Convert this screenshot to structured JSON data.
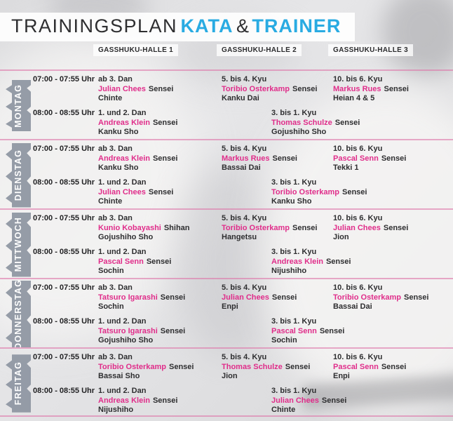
{
  "header": {
    "title_plain": "TRAININGSPLAN",
    "title_kata": "KATA",
    "title_amp": "&",
    "title_trainer": "TRAINER"
  },
  "columns": [
    "GASSHUKU-HALLE 1",
    "GASSHUKU-HALLE 2",
    "GASSHUKU-HALLE 3"
  ],
  "colors": {
    "accent_cyan": "#29abe2",
    "accent_magenta": "#e02d8a",
    "ribbon_gray": "#8e96a2",
    "text_dark": "#2e2e30",
    "separator_pink": "rgba(221,116,168,0.6)"
  },
  "days": [
    {
      "label": "MONTAG",
      "slots": [
        {
          "time": "07:00 - 07:55 Uhr",
          "entries": [
            {
              "hall": 1,
              "indent": false,
              "level": "ab 3. Dan",
              "trainer": "Julian Chees",
              "trainer_title": "Sensei",
              "kata": "Chinte"
            },
            {
              "hall": 2,
              "indent": false,
              "level": "5. bis 4. Kyu",
              "trainer": "Toribio Osterkamp",
              "trainer_title": "Sensei",
              "kata": "Kanku Dai"
            },
            {
              "hall": 3,
              "indent": false,
              "level": "10. bis 6. Kyu",
              "trainer": "Markus Rues",
              "trainer_title": "Sensei",
              "kata": "Heian 4 & 5"
            }
          ]
        },
        {
          "time": "08:00 - 08:55 Uhr",
          "entries": [
            {
              "hall": 1,
              "indent": false,
              "level": "1. und 2. Dan",
              "trainer": "Andreas Klein",
              "trainer_title": "Sensei",
              "kata": "Kanku Sho"
            },
            {
              "hall": 2,
              "indent": true,
              "level": "3. bis 1. Kyu",
              "trainer": "Thomas Schulze",
              "trainer_title": "Sensei",
              "kata": "Gojushiho Sho"
            }
          ]
        }
      ]
    },
    {
      "label": "DIENSTAG",
      "slots": [
        {
          "time": "07:00 - 07:55 Uhr",
          "entries": [
            {
              "hall": 1,
              "indent": false,
              "level": "ab 3. Dan",
              "trainer": "Andreas Klein",
              "trainer_title": "Sensei",
              "kata": "Kanku Sho"
            },
            {
              "hall": 2,
              "indent": false,
              "level": "5. bis 4. Kyu",
              "trainer": "Markus Rues",
              "trainer_title": "Sensei",
              "kata": "Bassai Dai"
            },
            {
              "hall": 3,
              "indent": false,
              "level": "10. bis 6. Kyu",
              "trainer": "Pascal Senn",
              "trainer_title": "Sensei",
              "kata": "Tekki 1"
            }
          ]
        },
        {
          "time": "08:00 - 08:55 Uhr",
          "entries": [
            {
              "hall": 1,
              "indent": false,
              "level": "1. und 2. Dan",
              "trainer": "Julian Chees",
              "trainer_title": "Sensei",
              "kata": "Chinte"
            },
            {
              "hall": 2,
              "indent": true,
              "level": "3. bis 1. Kyu",
              "trainer": "Toribio Osterkamp",
              "trainer_title": "Sensei",
              "kata": "Kanku Sho"
            }
          ]
        }
      ]
    },
    {
      "label": "MITTWOCH",
      "slots": [
        {
          "time": "07:00 - 07:55 Uhr",
          "entries": [
            {
              "hall": 1,
              "indent": false,
              "level": "ab 3. Dan",
              "trainer": "Kunio Kobayashi",
              "trainer_title": "Shihan",
              "kata": "Gojushiho Sho"
            },
            {
              "hall": 2,
              "indent": false,
              "level": "5. bis 4. Kyu",
              "trainer": "Toribio Osterkamp",
              "trainer_title": "Sensei",
              "kata": "Hangetsu"
            },
            {
              "hall": 3,
              "indent": false,
              "level": "10. bis 6. Kyu",
              "trainer": "Julian Chees",
              "trainer_title": "Sensei",
              "kata": "Jion"
            }
          ]
        },
        {
          "time": "08:00 - 08:55 Uhr",
          "entries": [
            {
              "hall": 1,
              "indent": false,
              "level": "1. und 2. Dan",
              "trainer": "Pascal Senn",
              "trainer_title": "Sensei",
              "kata": "Sochin"
            },
            {
              "hall": 2,
              "indent": true,
              "level": "3. bis 1. Kyu",
              "trainer": "Andreas Klein",
              "trainer_title": "Sensei",
              "kata": "Nijushiho"
            }
          ]
        }
      ]
    },
    {
      "label": "DONNERSTAG",
      "slots": [
        {
          "time": "07:00 - 07:55 Uhr",
          "entries": [
            {
              "hall": 1,
              "indent": false,
              "level": "ab 3. Dan",
              "trainer": "Tatsuro Igarashi",
              "trainer_title": "Sensei",
              "kata": "Sochin"
            },
            {
              "hall": 2,
              "indent": false,
              "level": "5. bis 4. Kyu",
              "trainer": "Julian Chees",
              "trainer_title": "Sensei",
              "kata": "Enpi"
            },
            {
              "hall": 3,
              "indent": false,
              "level": "10. bis 6. Kyu",
              "trainer": "Toribio Osterkamp",
              "trainer_title": "Sensei",
              "kata": "Bassai Dai"
            }
          ]
        },
        {
          "time": "08:00 - 08:55 Uhr",
          "entries": [
            {
              "hall": 1,
              "indent": false,
              "level": "1. und 2. Dan",
              "trainer": "Tatsuro Igarashi",
              "trainer_title": "Sensei",
              "kata": "Gojushiho Sho"
            },
            {
              "hall": 2,
              "indent": true,
              "level": "3. bis 1. Kyu",
              "trainer": "Pascal Senn",
              "trainer_title": "Sensei",
              "kata": "Sochin"
            }
          ]
        }
      ]
    },
    {
      "label": "FREITAG",
      "slots": [
        {
          "time": "07:00 - 07:55 Uhr",
          "entries": [
            {
              "hall": 1,
              "indent": false,
              "level": "ab 3. Dan",
              "trainer": "Toribio Osterkamp",
              "trainer_title": "Sensei",
              "kata": "Bassai Sho"
            },
            {
              "hall": 2,
              "indent": false,
              "level": "5. bis 4. Kyu",
              "trainer": "Thomas Schulze",
              "trainer_title": "Sensei",
              "kata": "Jion"
            },
            {
              "hall": 3,
              "indent": false,
              "level": "10. bis 6. Kyu",
              "trainer": "Pascal Senn",
              "trainer_title": "Sensei",
              "kata": "Enpi"
            }
          ]
        },
        {
          "time": "08:00 - 08:55 Uhr",
          "entries": [
            {
              "hall": 1,
              "indent": false,
              "level": "1. und 2. Dan",
              "trainer": "Andreas Klein",
              "trainer_title": "Sensei",
              "kata": "Nijushiho"
            },
            {
              "hall": 2,
              "indent": true,
              "level": "3. bis 1. Kyu",
              "trainer": "Julian Chees",
              "trainer_title": "Sensei",
              "kata": "Chinte"
            }
          ]
        }
      ]
    }
  ]
}
